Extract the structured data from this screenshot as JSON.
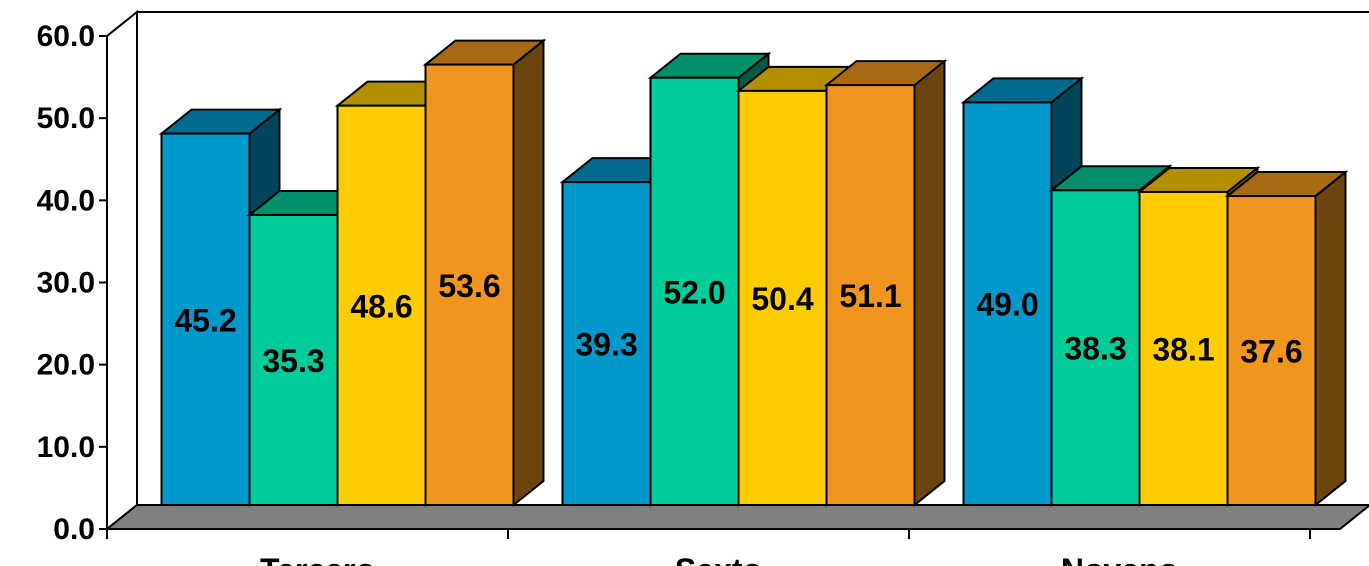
{
  "chart_data": {
    "type": "bar",
    "categories": [
      "Tercero",
      "Sexto",
      "Noveno"
    ],
    "series": [
      {
        "values": [
          45.2,
          39.3,
          49.0
        ],
        "color": "#0099CC"
      },
      {
        "values": [
          35.3,
          52.0,
          38.3
        ],
        "color": "#00CC99"
      },
      {
        "values": [
          48.6,
          50.4,
          38.1
        ],
        "color": "#FFCC00"
      },
      {
        "values": [
          53.6,
          51.1,
          37.6
        ],
        "color": "#F0961E"
      }
    ],
    "ylim": [
      0,
      60
    ],
    "yticks": [
      "0.0",
      "10.0",
      "20.0",
      "30.0",
      "40.0",
      "50.0",
      "60.0"
    ],
    "value_labels": [
      [
        "45.2",
        "39.3",
        "49.0"
      ],
      [
        "35.3",
        "52.0",
        "38.3"
      ],
      [
        "48.6",
        "50.4",
        "38.1"
      ],
      [
        "53.6",
        "51.1",
        "37.6"
      ]
    ],
    "floor_color": "#808080",
    "grid": false,
    "legend": "none",
    "title": "",
    "xlabel": "",
    "ylabel": ""
  }
}
